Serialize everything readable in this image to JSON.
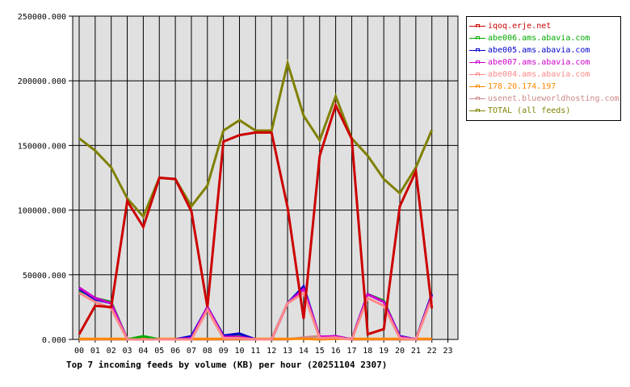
{
  "chart_data": {
    "type": "line",
    "title": "Top 7 incoming feeds by volume (KB) per hour (20251104 2307)",
    "xlabel": "",
    "ylabel": "",
    "ylim": [
      0,
      250000
    ],
    "y_ticks": [
      "0.000",
      "50000.000",
      "100000.000",
      "150000.000",
      "200000.000",
      "250000.000"
    ],
    "x": [
      "00",
      "01",
      "02",
      "03",
      "04",
      "05",
      "06",
      "07",
      "08",
      "09",
      "10",
      "11",
      "12",
      "13",
      "14",
      "15",
      "16",
      "17",
      "18",
      "19",
      "20",
      "21",
      "22",
      "23"
    ],
    "grid": true,
    "legend_position": "right",
    "series": [
      {
        "name": "iqoq.erje.net",
        "color": "#cc0000",
        "values": [
          4000,
          26000,
          25000,
          107000,
          87000,
          125000,
          124000,
          99000,
          25000,
          153000,
          158000,
          160000,
          160000,
          102000,
          16000,
          142000,
          181000,
          155000,
          4000,
          8000,
          103000,
          130000,
          24000
        ]
      },
      {
        "name": "abe006.ams.abavia.com",
        "color": "#00aa00",
        "values": [
          38000,
          32000,
          29000,
          0,
          2500,
          0,
          0,
          1500,
          25000,
          2000,
          3000,
          0,
          0,
          28000,
          39000,
          1500,
          2000,
          0,
          35000,
          30000,
          2000,
          0,
          35000
        ]
      },
      {
        "name": "abe005.ams.abavia.com",
        "color": "#0000cc",
        "values": [
          39000,
          31000,
          28000,
          0,
          0,
          0,
          0,
          2500,
          25000,
          3000,
          4500,
          0,
          0,
          28000,
          41000,
          1500,
          2500,
          0,
          35000,
          29000,
          2500,
          0,
          35000
        ]
      },
      {
        "name": "abe007.ams.abavia.com",
        "color": "#cc00cc",
        "values": [
          40000,
          32000,
          28000,
          0,
          0,
          0,
          0,
          1000,
          25000,
          2000,
          2000,
          0,
          0,
          28000,
          39000,
          2000,
          2500,
          0,
          35000,
          29000,
          2000,
          0,
          34000
        ]
      },
      {
        "name": "abe004.ams.abavia.com",
        "color": "#ff8888",
        "values": [
          36000,
          29000,
          24000,
          0,
          0,
          0,
          0,
          0,
          23000,
          1000,
          1000,
          0,
          0,
          28000,
          36000,
          1000,
          1500,
          0,
          32000,
          26000,
          1000,
          0,
          32000
        ]
      },
      {
        "name": "178.20.174.197",
        "color": "#ff8800",
        "values": [
          500,
          500,
          500,
          500,
          500,
          500,
          500,
          500,
          500,
          500,
          500,
          500,
          500,
          500,
          500,
          0,
          500,
          500,
          500,
          500,
          500,
          500,
          500
        ]
      },
      {
        "name": "usenet.blueworldhosting.com",
        "color": "#cc8888",
        "values": [
          0,
          0,
          0,
          0,
          0,
          0,
          0,
          0,
          0,
          0,
          0,
          0,
          0,
          0,
          1500,
          2500,
          1500,
          0,
          0,
          0,
          0,
          0,
          0
        ]
      },
      {
        "name": "TOTAL (all feeds)",
        "color": "#808000",
        "values": [
          155500,
          146000,
          133000,
          109000,
          95000,
          125000,
          124000,
          103000,
          119000,
          161500,
          169500,
          161500,
          161500,
          213500,
          173000,
          154000,
          188000,
          155500,
          142000,
          124000,
          113000,
          133000,
          162000
        ]
      }
    ]
  },
  "legend": {
    "items": [
      {
        "label": "iqoq.erje.net",
        "color": "#cc0000"
      },
      {
        "label": "abe006.ams.abavia.com",
        "color": "#00aa00"
      },
      {
        "label": "abe005.ams.abavia.com",
        "color": "#0000cc"
      },
      {
        "label": "abe007.ams.abavia.com",
        "color": "#cc00cc"
      },
      {
        "label": "abe004.ams.abavia.com",
        "color": "#ff8888"
      },
      {
        "label": "178.20.174.197",
        "color": "#ff8800"
      },
      {
        "label": "usenet.blueworldhosting.com",
        "color": "#cc8888"
      },
      {
        "label": "TOTAL (all feeds)",
        "color": "#808000"
      }
    ]
  }
}
